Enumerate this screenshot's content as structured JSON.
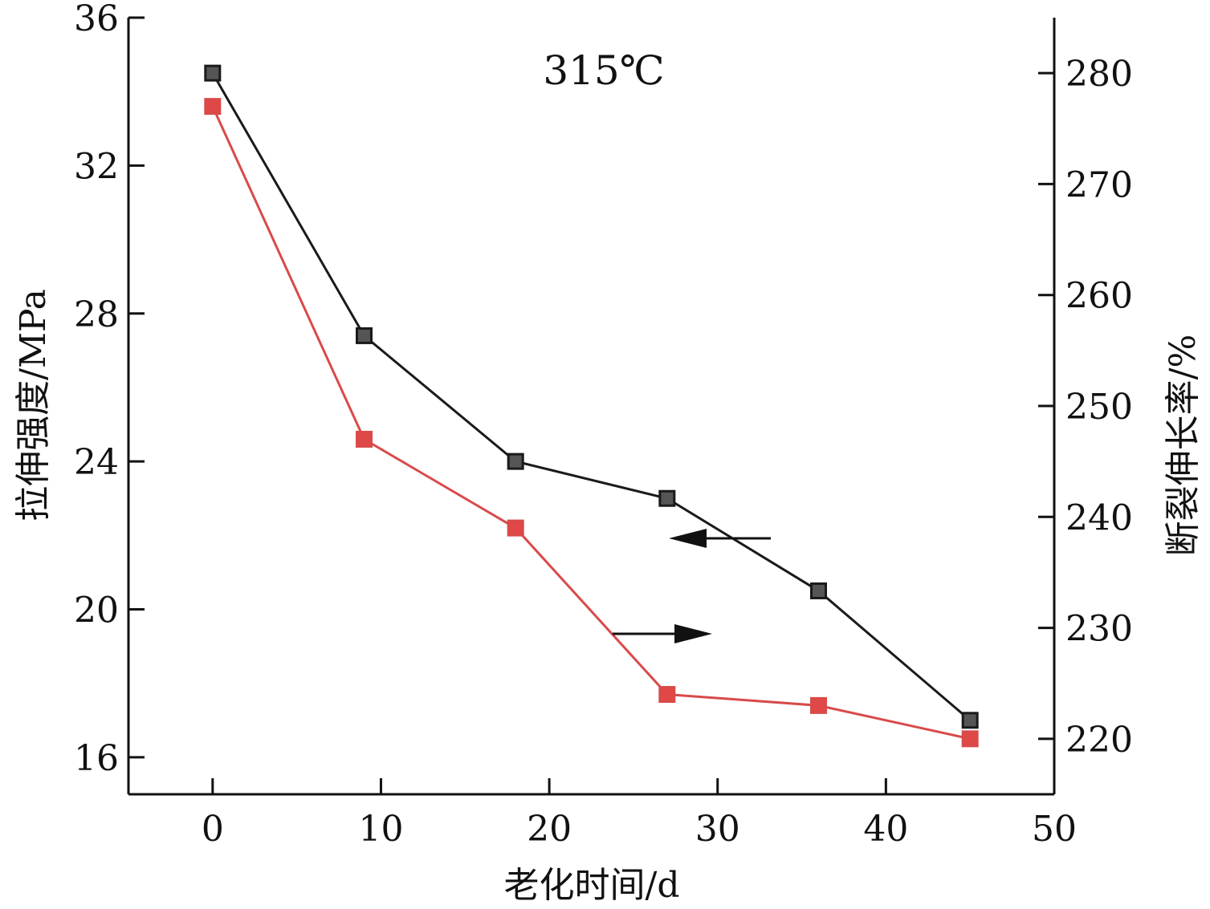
{
  "chart_data": {
    "type": "line",
    "annotation": "315℃",
    "xlabel": "老化时间/d",
    "ylabel_left": "拉伸强度/MPa",
    "ylabel_right": "断裂伸长率/%",
    "xlim": [
      -5,
      50
    ],
    "ylim_left": [
      15,
      36
    ],
    "ylim_right": [
      215,
      285
    ],
    "x_ticks": [
      0,
      10,
      20,
      30,
      40,
      50
    ],
    "y_left_ticks": [
      16,
      20,
      24,
      28,
      32,
      36
    ],
    "y_right_ticks": [
      220,
      230,
      240,
      250,
      260,
      270,
      280
    ],
    "grid": false,
    "legend": "none",
    "series": [
      {
        "axis": "left",
        "color": "#1a1a1a",
        "marker_fill": "#555555",
        "x": [
          0,
          9,
          18,
          27,
          36,
          45
        ],
        "values": [
          34.5,
          27.4,
          24.0,
          23.0,
          20.5,
          17.0
        ]
      },
      {
        "axis": "right",
        "color": "#d94a4a",
        "marker_fill": "#e04848",
        "x": [
          0,
          9,
          18,
          27,
          36,
          45
        ],
        "values": [
          277.0,
          247.0,
          239.0,
          224.0,
          223.0,
          220.0
        ]
      }
    ]
  }
}
